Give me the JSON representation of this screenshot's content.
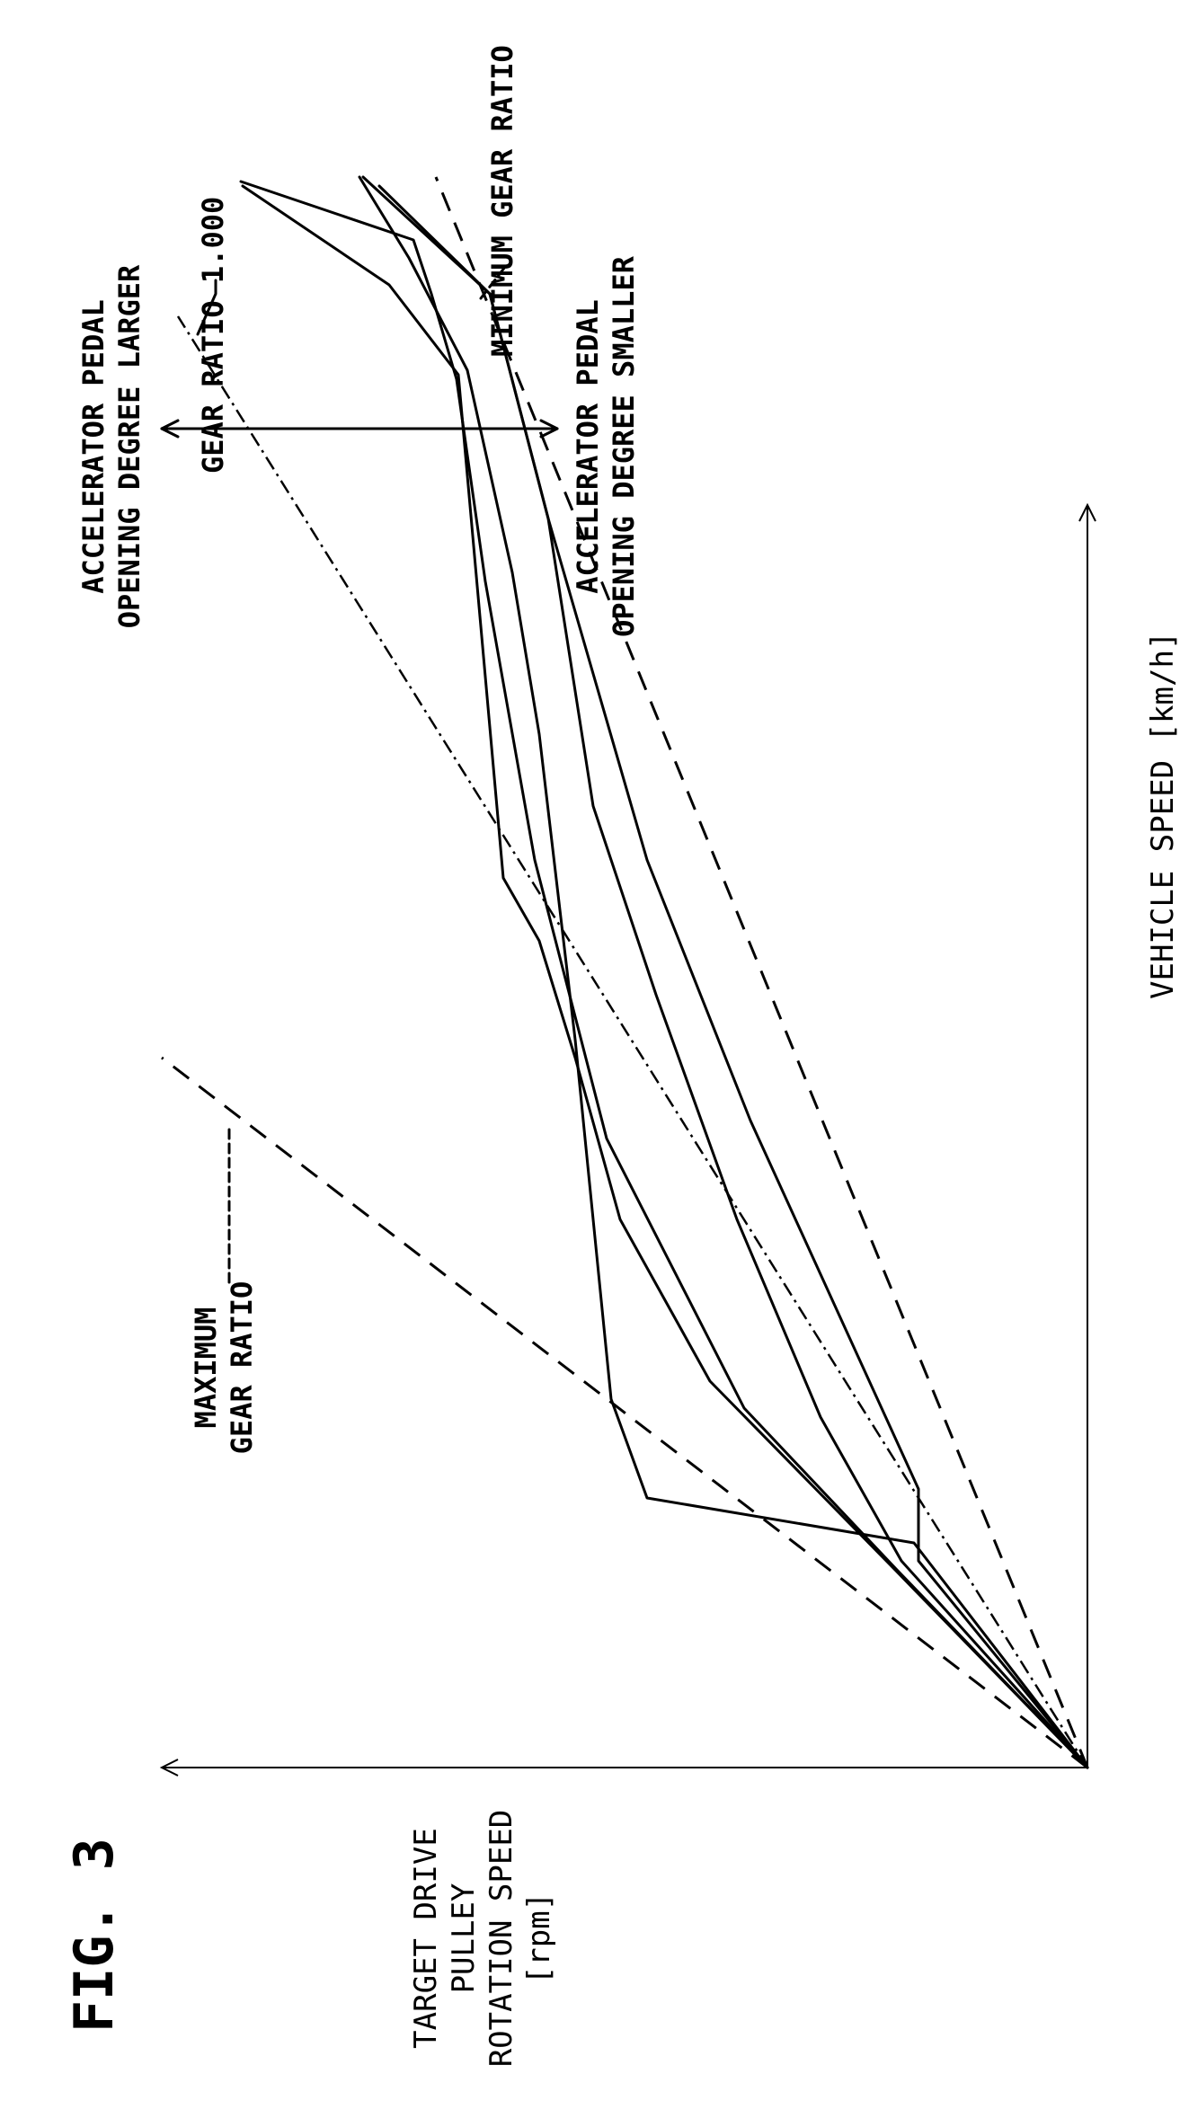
{
  "figure": {
    "title": "FIG. 3",
    "y_axis_label": [
      "TARGET DRIVE",
      "PULLEY",
      "ROTATION SPEED",
      "[rpm]"
    ],
    "x_axis_label": "VEHICLE SPEED [km/h]",
    "annotations": {
      "max_gear_ratio": [
        "MAXIMUM",
        "GEAR RATIO"
      ],
      "gear_ratio_1": "GEAR RATIO 1.000",
      "min_gear_ratio": "MINIMUM GEAR RATIO",
      "accel_larger": [
        "ACCELERATOR PEDAL",
        "OPENING DEGREE LARGER"
      ],
      "accel_smaller": [
        "ACCELERATOR PEDAL",
        "OPENING DEGREE SMALLER"
      ]
    }
  }
}
